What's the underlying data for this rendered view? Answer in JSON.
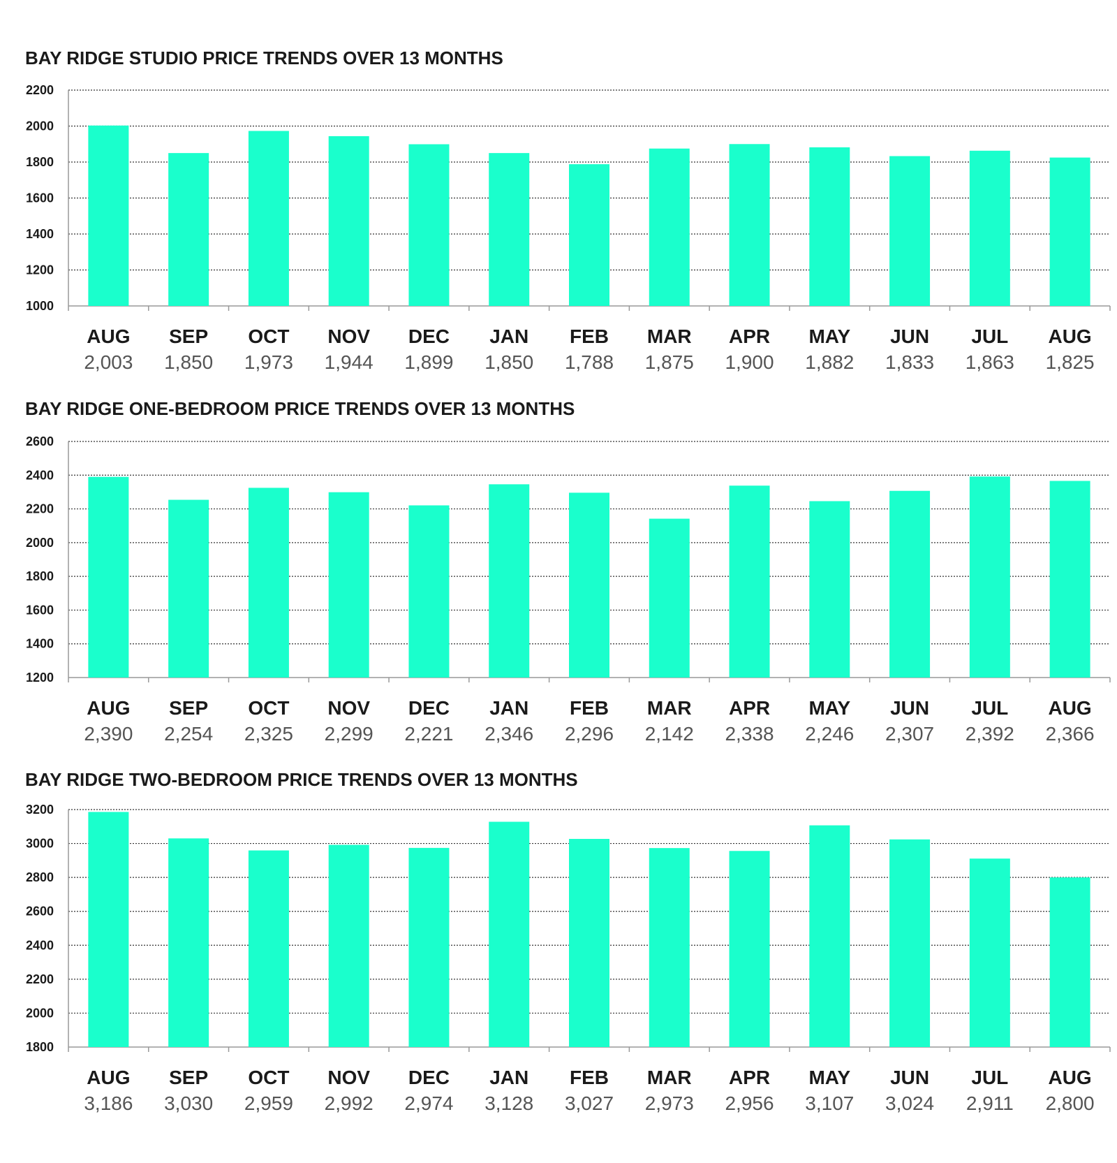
{
  "colors": {
    "bar": "#1affcc",
    "grid": "#333333",
    "axis": "#999999"
  },
  "chart_data": [
    {
      "type": "bar",
      "title": "BAY RIDGE STUDIO PRICE TRENDS OVER 13 MONTHS",
      "categories": [
        "AUG",
        "SEP",
        "OCT",
        "NOV",
        "DEC",
        "JAN",
        "FEB",
        "MAR",
        "APR",
        "MAY",
        "JUN",
        "JUL",
        "AUG"
      ],
      "values": [
        2003,
        1850,
        1973,
        1944,
        1899,
        1850,
        1788,
        1875,
        1900,
        1882,
        1833,
        1863,
        1825
      ],
      "value_labels": [
        "2,003",
        "1,850",
        "1,973",
        "1,944",
        "1,899",
        "1,850",
        "1,788",
        "1,875",
        "1,900",
        "1,882",
        "1,833",
        "1,863",
        "1,825"
      ],
      "yticks": [
        "2200",
        "2000",
        "1800",
        "1600",
        "1400",
        "1200",
        "1000"
      ],
      "ylim": [
        1000,
        2200
      ],
      "grid": true,
      "legend": "none"
    },
    {
      "type": "bar",
      "title": "BAY RIDGE ONE-BEDROOM PRICE TRENDS OVER 13 MONTHS",
      "categories": [
        "AUG",
        "SEP",
        "OCT",
        "NOV",
        "DEC",
        "JAN",
        "FEB",
        "MAR",
        "APR",
        "MAY",
        "JUN",
        "JUL",
        "AUG"
      ],
      "values": [
        2390,
        2254,
        2325,
        2299,
        2221,
        2346,
        2296,
        2142,
        2338,
        2246,
        2307,
        2392,
        2366
      ],
      "value_labels": [
        "2,390",
        "2,254",
        "2,325",
        "2,299",
        "2,221",
        "2,346",
        "2,296",
        "2,142",
        "2,338",
        "2,246",
        "2,307",
        "2,392",
        "2,366"
      ],
      "yticks": [
        "2600",
        "2400",
        "2200",
        "2000",
        "1800",
        "1600",
        "1400",
        "1200"
      ],
      "ylim": [
        1200,
        2600
      ],
      "grid": true,
      "legend": "none"
    },
    {
      "type": "bar",
      "title": "BAY RIDGE TWO-BEDROOM PRICE TRENDS OVER 13 MONTHS",
      "categories": [
        "AUG",
        "SEP",
        "OCT",
        "NOV",
        "DEC",
        "JAN",
        "FEB",
        "MAR",
        "APR",
        "MAY",
        "JUN",
        "JUL",
        "AUG"
      ],
      "values": [
        3186,
        3030,
        2959,
        2992,
        2974,
        3128,
        3027,
        2973,
        2956,
        3107,
        3024,
        2911,
        2800
      ],
      "value_labels": [
        "3,186",
        "3,030",
        "2,959",
        "2,992",
        "2,974",
        "3,128",
        "3,027",
        "2,973",
        "2,956",
        "3,107",
        "3,024",
        "2,911",
        "2,800"
      ],
      "yticks": [
        "3200",
        "3000",
        "2800",
        "2600",
        "2400",
        "2200",
        "2000",
        "1800"
      ],
      "ylim": [
        1800,
        3200
      ],
      "grid": true,
      "legend": "none"
    }
  ]
}
